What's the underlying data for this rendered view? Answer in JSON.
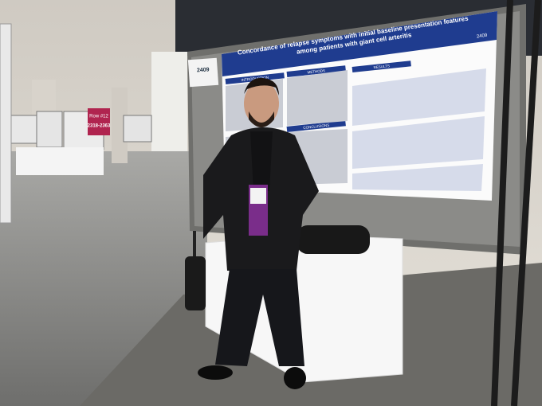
{
  "signs": {
    "row": "Row #12",
    "range": "2318-2363"
  },
  "poster": {
    "title": "Concordance of relapse symptoms with initial baseline presentation features among patients with giant cell arteritis",
    "number": "2409",
    "board_number": "2409",
    "sections": [
      "INTRODUCTION",
      "METHODS",
      "RESULTS",
      "CONCLUSIONS"
    ]
  }
}
